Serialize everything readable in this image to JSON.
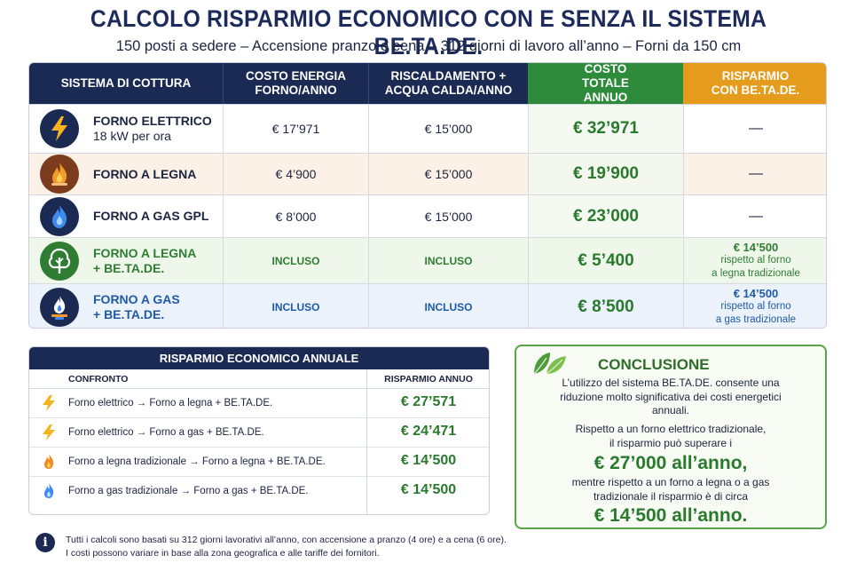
{
  "title": "CALCOLO RISPARMIO ECONOMICO CON E SENZA IL SISTEMA BE.TA.DE.",
  "subtitle": "150 posti a sedere – Accensione pranzo e cena – 312 giorni di lavoro all’anno – Forni da 150 cm",
  "table": {
    "headers": [
      "SISTEMA DI COTTURA",
      "COSTO ENERGIA FORNO/ANNO",
      "RISCALDAMENTO + ACQUA CALDA/ANNO",
      "COSTO TOTALE ANNUO",
      "RISPARMIO CON BE.TA.DE."
    ],
    "rows": [
      {
        "icon": "lightning-icon",
        "name_1": "FORNO ELETTRICO",
        "name_2": "18 kW per ora",
        "energy": "€ 17’971",
        "heating": "€ 15’000",
        "total": "€ 32’971",
        "saving": "—"
      },
      {
        "icon": "fire-icon",
        "name_1": "FORNO A LEGNA",
        "energy": "€ 4’900",
        "heating": "€ 15’000",
        "total": "€ 19’900",
        "saving": "—"
      },
      {
        "icon": "gas-flame-icon",
        "name_1": "FORNO A GAS GPL",
        "energy": "€ 8’000",
        "heating": "€ 15’000",
        "total": "€ 23’000",
        "saving": "—"
      },
      {
        "icon": "tree-icon",
        "name_1": "FORNO A LEGNA",
        "name_2": "+ BE.TA.DE.",
        "energy": "INCLUSO",
        "heating": "INCLUSO",
        "total": "€ 5’400",
        "saving_amount": "€ 14’500",
        "saving_l1": "rispetto al forno",
        "saving_l2": "a legna tradizionale"
      },
      {
        "icon": "gas-burner-icon",
        "name_1": "FORNO A GAS",
        "name_2": "+ BE.TA.DE.",
        "energy": "INCLUSO",
        "heating": "INCLUSO",
        "total": "€ 8’500",
        "saving_amount": "€ 14’500",
        "saving_l1": "rispetto al forno",
        "saving_l2": "a gas tradizionale"
      }
    ]
  },
  "savings": {
    "title": "RISPARMIO ECONOMICO ANNUALE",
    "col_compare": "CONFRONTO",
    "col_saving": "RISPARMIO ANNUO",
    "rows": [
      {
        "icon": "lightning-icon",
        "text": "Forno elettrico → Forno a legna + BE.TA.DE.",
        "value": "€ 27’571"
      },
      {
        "icon": "lightning-icon",
        "text": "Forno elettrico → Forno a gas + BE.TA.DE.",
        "value": "€ 24’471"
      },
      {
        "icon": "fire-icon",
        "text": "Forno a legna tradizionale → Forno a legna + BE.TA.DE.",
        "value": "€ 14’500"
      },
      {
        "icon": "gas-flame-icon",
        "text": "Forno a gas tradizionale → Forno a gas + BE.TA.DE.",
        "value": "€ 14’500"
      }
    ]
  },
  "conclusion": {
    "title": "CONCLUSIONE",
    "p1_l1": "L’utilizzo del sistema BE.TA.DE. consente una",
    "p1_l2": "riduzione molto significativa dei costi energetici",
    "p1_l3": "annuali.",
    "p2_l1": "Rispetto a un forno elettrico tradizionale,",
    "p2_l2": "il risparmio può superare i",
    "big1": "€ 27’000 all’anno,",
    "p3_l1": "mentre rispetto a un forno a legna o a gas",
    "p3_l2": "tradizionale il risparmio è di circa",
    "big2": "€ 14’500 all’anno."
  },
  "footer": {
    "line1": "Tutti i calcoli sono basati su 312 giorni lavorativi all’anno, con accensione a pranzo (4 ore) e a cena (6 ore).",
    "line2": "I costi possono variare in base alla zona geografica e alle tariffe dei fornitori."
  },
  "colors": {
    "navy": "#1b2a52",
    "green": "#2e8b3c",
    "orange": "#e59b1c"
  }
}
